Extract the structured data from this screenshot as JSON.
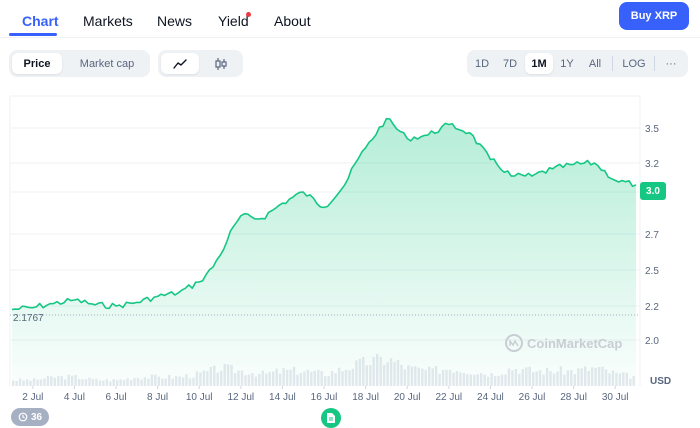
{
  "nav": {
    "tabs": [
      {
        "label": "Chart"
      },
      {
        "label": "Markets"
      },
      {
        "label": "News"
      },
      {
        "label": "Yield"
      },
      {
        "label": "About"
      }
    ],
    "buy_label": "Buy XRP"
  },
  "toolbar": {
    "price_label": "Price",
    "market_cap_label": "Market cap",
    "range_buttons": [
      "1D",
      "7D",
      "1M",
      "1Y",
      "All"
    ],
    "selected_range": "1M",
    "log_label": "LOG",
    "more_label": "···"
  },
  "chart_data": {
    "type": "area",
    "x_tick_labels": [
      "2 Jul",
      "4 Jul",
      "6 Jul",
      "8 Jul",
      "10 Jul",
      "12 Jul",
      "14 Jul",
      "16 Jul",
      "18 Jul",
      "20 Jul",
      "22 Jul",
      "24 Jul",
      "26 Jul",
      "28 Jul",
      "30 Jul"
    ],
    "y_tick_labels": [
      "3.5",
      "3.2",
      "2.7",
      "2.5",
      "2.2",
      "2.0"
    ],
    "y_unit": "USD",
    "line_color": "#16c784",
    "series": [
      {
        "x": [
          "2025-07-01",
          "2025-07-02",
          "2025-07-03",
          "2025-07-04",
          "2025-07-05",
          "2025-07-06",
          "2025-07-07",
          "2025-07-08",
          "2025-07-09",
          "2025-07-10",
          "2025-07-11",
          "2025-07-12",
          "2025-07-13",
          "2025-07-14",
          "2025-07-15",
          "2025-07-16",
          "2025-07-17",
          "2025-07-18",
          "2025-07-19",
          "2025-07-20",
          "2025-07-21",
          "2025-07-22",
          "2025-07-23",
          "2025-07-24",
          "2025-07-25",
          "2025-07-26",
          "2025-07-27",
          "2025-07-28",
          "2025-07-29",
          "2025-07-30",
          "2025-07-31"
        ],
        "y": [
          2.18,
          2.19,
          2.22,
          2.25,
          2.21,
          2.2,
          2.23,
          2.28,
          2.31,
          2.4,
          2.58,
          2.83,
          2.81,
          2.92,
          3.0,
          2.89,
          3.05,
          3.33,
          3.58,
          3.41,
          3.44,
          3.53,
          3.46,
          3.23,
          3.11,
          3.11,
          3.16,
          3.19,
          3.2,
          3.08,
          3.05
        ]
      }
    ],
    "volume": [
      2,
      2,
      3,
      3,
      2,
      2,
      3,
      3,
      3,
      4,
      6,
      5,
      4,
      5,
      5,
      4,
      6,
      8,
      9,
      6,
      5,
      6,
      5,
      4,
      6,
      5,
      5,
      5,
      6,
      4,
      3
    ],
    "open_price_label": "2.1767",
    "current_price_label": "3.0",
    "watermark": "CoinMarketCap",
    "event_count": "36"
  }
}
